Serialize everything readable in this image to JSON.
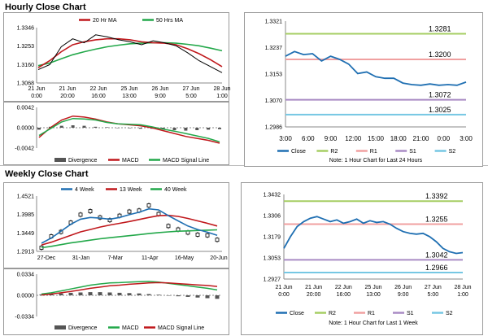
{
  "sections": {
    "hourly_title": "Hourly Close Chart",
    "weekly_title": "Weekly Close Chart"
  },
  "colors": {
    "close": "#1f6fb2",
    "ma20": "#c0181c",
    "ma50": "#23a84a",
    "r2": "#a6ce63",
    "r1": "#f0a0a0",
    "s1": "#a98bc4",
    "s2": "#76c7e3",
    "divergence": "#555555",
    "price": "#000000"
  },
  "chart_data": [
    {
      "id": "hourly-price",
      "type": "line",
      "title": "",
      "legend": [
        "20 Hr MA",
        "50 Hrs MA"
      ],
      "y_ticks": [
        "1.3346",
        "1.3253",
        "1.3160",
        "1.3068"
      ],
      "ylim": [
        1.3068,
        1.3346
      ],
      "x_ticks": [
        "21 Jun\n0:00",
        "21 Jun\n20:00",
        "22 Jun\n16:00",
        "25 Jun\n13:00",
        "26 Jun\n9:00",
        "27 Jun\n5:00",
        "28 Jun\n1:00"
      ],
      "series": [
        {
          "name": "Price",
          "values": [
            1.3135,
            1.316,
            1.325,
            1.329,
            1.327,
            1.331,
            1.33,
            1.3285,
            1.3275,
            1.326,
            1.328,
            1.327,
            1.3255,
            1.322,
            1.318,
            1.315,
            1.312
          ]
        },
        {
          "name": "20 Hr MA",
          "values": [
            1.3145,
            1.318,
            1.3225,
            1.326,
            1.3275,
            1.3285,
            1.329,
            1.329,
            1.3285,
            1.3275,
            1.327,
            1.3268,
            1.326,
            1.324,
            1.3215,
            1.3185,
            1.315
          ]
        },
        {
          "name": "50 Hrs MA",
          "values": [
            1.3155,
            1.3168,
            1.319,
            1.321,
            1.3225,
            1.3238,
            1.325,
            1.3258,
            1.3265,
            1.3268,
            1.327,
            1.327,
            1.3268,
            1.3262,
            1.3255,
            1.3243,
            1.323
          ]
        }
      ]
    },
    {
      "id": "hourly-macd",
      "type": "line",
      "title": "",
      "y_ticks": [
        "0.0042",
        "0.0000",
        "-0.0042"
      ],
      "ylim": [
        -0.0042,
        0.0042
      ],
      "x_ticks": [
        "21 Jun\n0:00",
        "21 Jun\n20:00",
        "22 Jun\n16:00",
        "25 Jun\n13:00",
        "26 Jun\n9:00",
        "27 Jun\n5:00",
        "28 Jun\n1:00"
      ],
      "legend": [
        "Divergence",
        "MACD",
        "MACD Signal Line"
      ],
      "series": [
        {
          "name": "Divergence",
          "values": [
            -0.0004,
            0.0002,
            0.0004,
            0.0005,
            0.0004,
            0.0002,
            0.0001,
            0.0,
            -0.0001,
            -0.0002,
            -0.0002,
            -0.0003,
            -0.0005,
            -0.0006,
            -0.0005,
            -0.0004,
            -0.0003
          ]
        },
        {
          "name": "MACD",
          "values": [
            -0.002,
            0.0,
            0.0016,
            0.0024,
            0.0022,
            0.0018,
            0.0012,
            0.0008,
            0.0006,
            0.0004,
            0.0,
            -0.0006,
            -0.0012,
            -0.0018,
            -0.0022,
            -0.0026,
            -0.0032
          ]
        },
        {
          "name": "MACD Signal Line",
          "values": [
            -0.0016,
            -0.0002,
            0.0012,
            0.0019,
            0.0018,
            0.0016,
            0.0011,
            0.0008,
            0.0007,
            0.0006,
            0.0002,
            -0.0003,
            -0.0007,
            -0.0012,
            -0.0017,
            -0.0022,
            -0.0029
          ]
        }
      ]
    },
    {
      "id": "hourly-pivot",
      "type": "line",
      "title": "",
      "y_ticks": [
        "1.3321",
        "1.3237",
        "1.3153",
        "1.3070",
        "1.2986"
      ],
      "ylim": [
        1.2986,
        1.3321
      ],
      "x_ticks": [
        "3:00",
        "6:00",
        "9:00",
        "12:00",
        "15:00",
        "18:00",
        "21:00",
        "0:00",
        "3:00"
      ],
      "levels": [
        {
          "name": "R2",
          "value": 1.3281,
          "label": "1.3281"
        },
        {
          "name": "R1",
          "value": 1.32,
          "label": "1.3200"
        },
        {
          "name": "S1",
          "value": 1.3072,
          "label": "1.3072"
        },
        {
          "name": "S2",
          "value": 1.3025,
          "label": "1.3025"
        }
      ],
      "close_values": [
        1.321,
        1.3225,
        1.3215,
        1.3218,
        1.3195,
        1.321,
        1.32,
        1.3185,
        1.3155,
        1.316,
        1.3145,
        1.314,
        1.314,
        1.3125,
        1.312,
        1.3118,
        1.3122,
        1.3118,
        1.312,
        1.3118,
        1.3128
      ],
      "legend": [
        "Close",
        "R2",
        "R1",
        "S1",
        "S2"
      ],
      "note": "Note: 1 Hour Chart for Last 24 Hours"
    },
    {
      "id": "weekly-price",
      "type": "line",
      "title": "",
      "legend": [
        "4 Week",
        "13 Week",
        "40 Week"
      ],
      "y_ticks": [
        "1.4521",
        "1.3985",
        "1.3449",
        "1.2913"
      ],
      "ylim": [
        1.2913,
        1.4521
      ],
      "x_ticks": [
        "27-Dec",
        "31-Jan",
        "7-Mar",
        "11-Apr",
        "16-May",
        "20-Jun"
      ],
      "series": [
        {
          "name": "Price",
          "values": [
            1.302,
            1.335,
            1.348,
            1.375,
            1.398,
            1.408,
            1.39,
            1.382,
            1.395,
            1.407,
            1.41,
            1.425,
            1.4,
            1.365,
            1.355,
            1.346,
            1.34,
            1.338,
            1.325
          ]
        },
        {
          "name": "4 Week",
          "values": [
            1.315,
            1.33,
            1.35,
            1.37,
            1.385,
            1.39,
            1.388,
            1.385,
            1.39,
            1.398,
            1.405,
            1.415,
            1.412,
            1.395,
            1.38,
            1.365,
            1.355,
            1.347,
            1.338
          ]
        },
        {
          "name": "13 Week",
          "values": [
            1.31,
            1.318,
            1.328,
            1.338,
            1.348,
            1.355,
            1.362,
            1.368,
            1.373,
            1.378,
            1.384,
            1.39,
            1.395,
            1.396,
            1.393,
            1.387,
            1.38,
            1.373,
            1.365
          ]
        },
        {
          "name": "40 Week",
          "values": [
            1.302,
            1.306,
            1.311,
            1.316,
            1.32,
            1.324,
            1.328,
            1.331,
            1.334,
            1.337,
            1.34,
            1.343,
            1.346,
            1.348,
            1.35,
            1.351,
            1.352,
            1.353,
            1.354
          ]
        }
      ]
    },
    {
      "id": "weekly-macd",
      "type": "line",
      "title": "",
      "y_ticks": [
        "0.0334",
        "0.0000",
        "-0.0334"
      ],
      "ylim": [
        -0.0334,
        0.0334
      ],
      "legend": [
        "Divergence",
        "MACD",
        "MACD Signal Line"
      ],
      "series": [
        {
          "name": "Divergence",
          "values": [
            0.0015,
            0.002,
            0.003,
            0.004,
            0.0045,
            0.005,
            0.005,
            0.0045,
            0.004,
            0.0035,
            0.003,
            0.002,
            0.001,
            0.0,
            -0.0015,
            -0.0025,
            -0.0035,
            -0.0045,
            -0.0055
          ]
        },
        {
          "name": "MACD",
          "values": [
            0.002,
            0.004,
            0.007,
            0.01,
            0.013,
            0.016,
            0.018,
            0.0195,
            0.02,
            0.021,
            0.0215,
            0.022,
            0.021,
            0.019,
            0.017,
            0.015,
            0.013,
            0.011,
            0.0085
          ]
        },
        {
          "name": "MACD Signal Line",
          "values": [
            0.0005,
            0.002,
            0.004,
            0.006,
            0.0085,
            0.011,
            0.013,
            0.015,
            0.016,
            0.0175,
            0.0185,
            0.0195,
            0.02,
            0.0195,
            0.0185,
            0.0175,
            0.0165,
            0.0155,
            0.014
          ]
        }
      ]
    },
    {
      "id": "weekly-pivot",
      "type": "line",
      "title": "",
      "y_ticks": [
        "1.3432",
        "1.3306",
        "1.3179",
        "1.3053",
        "1.2927"
      ],
      "ylim": [
        1.2927,
        1.3432
      ],
      "x_ticks": [
        "21 Jun\n0:00",
        "21 Jun\n20:00",
        "22 Jun\n16:00",
        "25 Jun\n13:00",
        "26 Jun\n9:00",
        "27 Jun\n5:00",
        "28 Jun\n1:00"
      ],
      "levels": [
        {
          "name": "R2",
          "value": 1.3392,
          "label": "1.3392"
        },
        {
          "name": "R1",
          "value": 1.3255,
          "label": "1.3255"
        },
        {
          "name": "S1",
          "value": 1.3042,
          "label": "1.3042"
        },
        {
          "name": "S2",
          "value": 1.2966,
          "label": "1.2966"
        }
      ],
      "close_values": [
        1.311,
        1.318,
        1.324,
        1.327,
        1.329,
        1.33,
        1.3285,
        1.327,
        1.328,
        1.326,
        1.327,
        1.3285,
        1.326,
        1.3275,
        1.3265,
        1.327,
        1.3255,
        1.323,
        1.321,
        1.32,
        1.3195,
        1.32,
        1.318,
        1.315,
        1.311,
        1.309,
        1.308,
        1.3085
      ],
      "legend": [
        "Close",
        "R2",
        "R1",
        "S1",
        "S2"
      ],
      "note": "Note: 1 Hour Chart for Last 1 Week"
    }
  ]
}
